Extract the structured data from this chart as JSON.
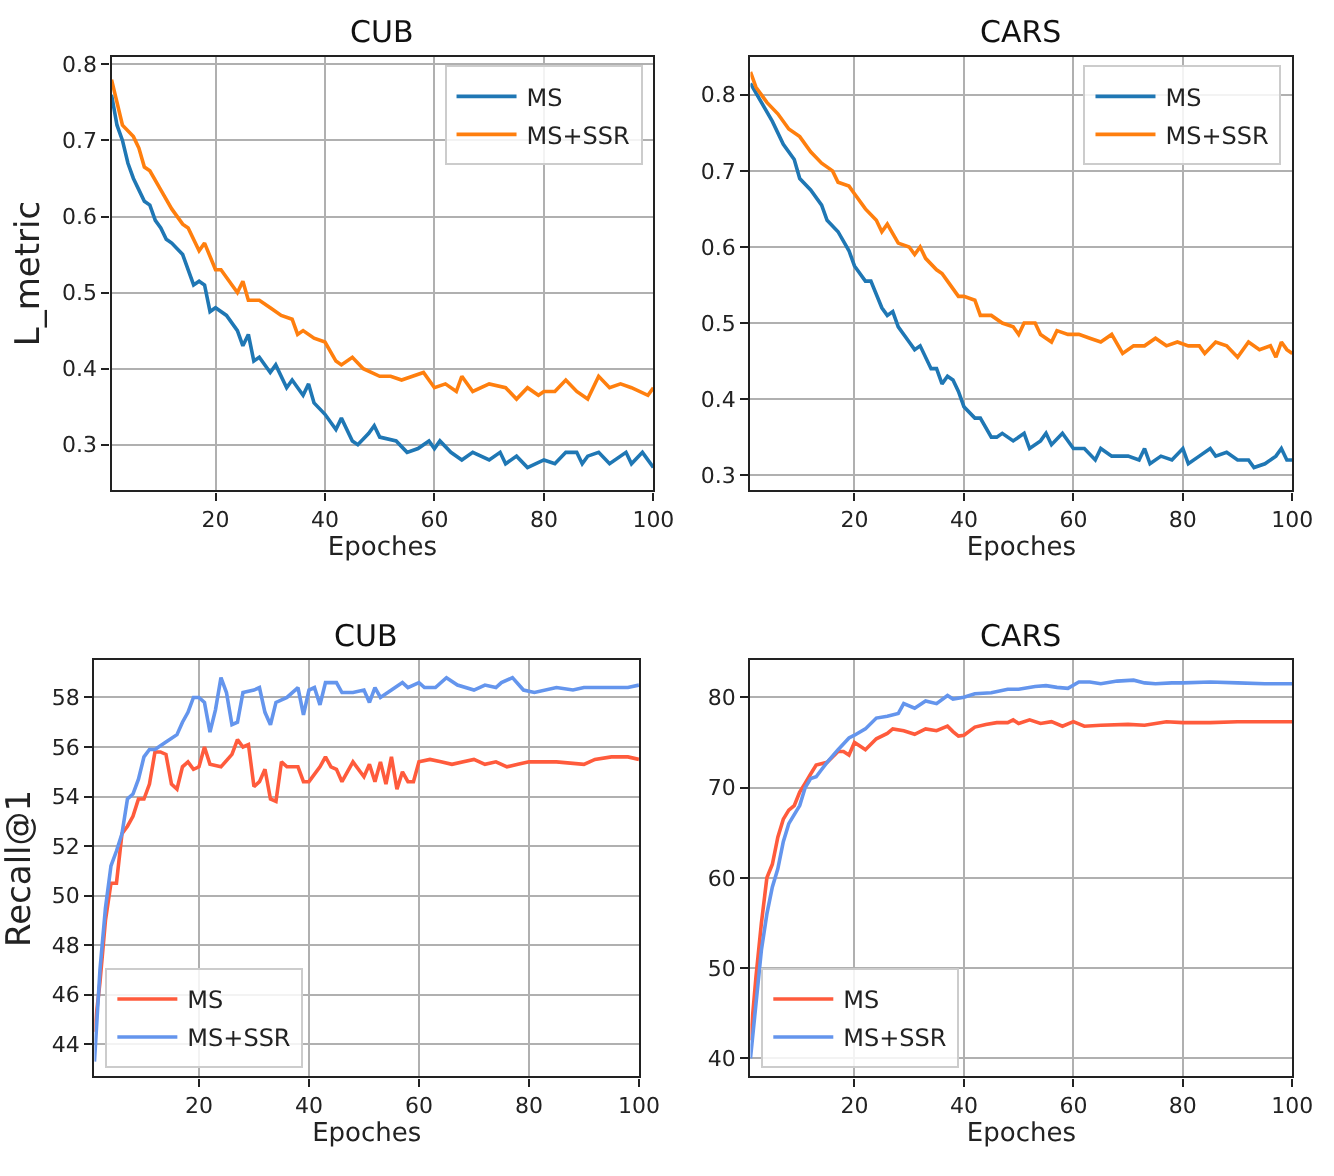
{
  "chart_data": [
    {
      "type": "line",
      "title": "CUB",
      "xlabel": "Epoches",
      "ylabel": "L_metric",
      "xlim": [
        1,
        100
      ],
      "xticks": [
        20,
        40,
        60,
        80,
        100
      ],
      "ylim": [
        0.24,
        0.81
      ],
      "yticks": [
        0.3,
        0.4,
        0.5,
        0.6,
        0.7,
        0.8
      ],
      "grid": true,
      "legend": "top right",
      "series": [
        {
          "name": "MS",
          "color": "#1f77b4",
          "x": [
            1,
            2,
            3,
            4,
            5,
            6,
            7,
            8,
            9,
            10,
            11,
            12,
            14,
            16,
            17,
            18,
            19,
            20,
            22,
            24,
            25,
            26,
            27,
            28,
            30,
            31,
            33,
            34,
            36,
            37,
            38,
            40,
            42,
            43,
            45,
            46,
            48,
            49,
            50,
            53,
            55,
            57,
            59,
            60,
            61,
            63,
            65,
            67,
            70,
            72,
            73,
            75,
            77,
            80,
            82,
            84,
            86,
            87,
            88,
            90,
            92,
            95,
            96,
            98,
            100
          ],
          "values": [
            0.76,
            0.72,
            0.7,
            0.67,
            0.65,
            0.635,
            0.62,
            0.615,
            0.595,
            0.585,
            0.57,
            0.565,
            0.55,
            0.51,
            0.515,
            0.51,
            0.475,
            0.48,
            0.47,
            0.45,
            0.43,
            0.445,
            0.41,
            0.415,
            0.395,
            0.405,
            0.375,
            0.385,
            0.365,
            0.38,
            0.355,
            0.34,
            0.32,
            0.335,
            0.305,
            0.3,
            0.315,
            0.325,
            0.31,
            0.305,
            0.29,
            0.295,
            0.305,
            0.295,
            0.305,
            0.29,
            0.28,
            0.29,
            0.28,
            0.29,
            0.275,
            0.285,
            0.27,
            0.28,
            0.275,
            0.29,
            0.29,
            0.275,
            0.285,
            0.29,
            0.275,
            0.29,
            0.275,
            0.29,
            0.27
          ]
        },
        {
          "name": "MS+SSR",
          "color": "#ff7f0e",
          "x": [
            1,
            2,
            3,
            5,
            6,
            7,
            8,
            10,
            12,
            14,
            15,
            17,
            18,
            20,
            21,
            23,
            24,
            25,
            26,
            28,
            30,
            32,
            34,
            35,
            36,
            38,
            40,
            42,
            43,
            45,
            47,
            50,
            52,
            54,
            56,
            58,
            60,
            62,
            64,
            65,
            67,
            70,
            73,
            75,
            77,
            79,
            80,
            82,
            84,
            86,
            88,
            90,
            92,
            94,
            96,
            99,
            100
          ],
          "values": [
            0.78,
            0.75,
            0.72,
            0.705,
            0.69,
            0.665,
            0.66,
            0.635,
            0.61,
            0.59,
            0.585,
            0.555,
            0.565,
            0.53,
            0.53,
            0.51,
            0.5,
            0.515,
            0.49,
            0.49,
            0.48,
            0.47,
            0.465,
            0.445,
            0.45,
            0.44,
            0.435,
            0.41,
            0.405,
            0.415,
            0.4,
            0.39,
            0.39,
            0.385,
            0.39,
            0.395,
            0.375,
            0.38,
            0.37,
            0.39,
            0.37,
            0.38,
            0.375,
            0.36,
            0.375,
            0.365,
            0.37,
            0.37,
            0.385,
            0.37,
            0.36,
            0.39,
            0.375,
            0.38,
            0.375,
            0.365,
            0.375
          ]
        }
      ]
    },
    {
      "type": "line",
      "title": "CARS",
      "xlabel": "Epoches",
      "xlim": [
        1,
        100
      ],
      "xticks": [
        20,
        40,
        60,
        80,
        100
      ],
      "ylim": [
        0.28,
        0.85
      ],
      "yticks": [
        0.3,
        0.4,
        0.5,
        0.6,
        0.7,
        0.8
      ],
      "grid": true,
      "legend": "top right",
      "series": [
        {
          "name": "MS",
          "color": "#1f77b4",
          "x": [
            1,
            3,
            5,
            7,
            9,
            10,
            12,
            14,
            15,
            17,
            19,
            20,
            22,
            23,
            25,
            26,
            27,
            28,
            30,
            31,
            32,
            34,
            35,
            36,
            37,
            38,
            39,
            40,
            42,
            43,
            45,
            46,
            47,
            49,
            51,
            52,
            54,
            55,
            56,
            58,
            60,
            62,
            64,
            65,
            67,
            70,
            72,
            73,
            74,
            76,
            78,
            80,
            81,
            83,
            85,
            86,
            88,
            90,
            92,
            93,
            95,
            97,
            98,
            99,
            100
          ],
          "values": [
            0.815,
            0.79,
            0.765,
            0.735,
            0.715,
            0.69,
            0.675,
            0.655,
            0.635,
            0.62,
            0.595,
            0.575,
            0.555,
            0.555,
            0.52,
            0.51,
            0.515,
            0.495,
            0.475,
            0.465,
            0.47,
            0.44,
            0.44,
            0.42,
            0.43,
            0.425,
            0.41,
            0.39,
            0.375,
            0.375,
            0.35,
            0.35,
            0.355,
            0.345,
            0.355,
            0.335,
            0.345,
            0.355,
            0.34,
            0.355,
            0.335,
            0.335,
            0.32,
            0.335,
            0.325,
            0.325,
            0.32,
            0.335,
            0.315,
            0.325,
            0.32,
            0.335,
            0.315,
            0.325,
            0.335,
            0.325,
            0.33,
            0.32,
            0.32,
            0.31,
            0.315,
            0.325,
            0.335,
            0.32,
            0.32
          ]
        },
        {
          "name": "MS+SSR",
          "color": "#ff7f0e",
          "x": [
            1,
            2,
            4,
            6,
            8,
            10,
            12,
            14,
            16,
            17,
            19,
            20,
            22,
            24,
            25,
            26,
            28,
            30,
            31,
            32,
            33,
            35,
            36,
            37,
            39,
            40,
            42,
            43,
            45,
            47,
            49,
            50,
            51,
            53,
            54,
            56,
            57,
            59,
            61,
            63,
            65,
            67,
            69,
            71,
            73,
            75,
            77,
            79,
            81,
            83,
            84,
            86,
            88,
            90,
            92,
            94,
            96,
            97,
            98,
            99,
            100
          ],
          "values": [
            0.83,
            0.81,
            0.79,
            0.775,
            0.755,
            0.745,
            0.725,
            0.71,
            0.7,
            0.685,
            0.68,
            0.67,
            0.65,
            0.635,
            0.62,
            0.63,
            0.605,
            0.6,
            0.59,
            0.6,
            0.585,
            0.57,
            0.565,
            0.555,
            0.535,
            0.535,
            0.53,
            0.51,
            0.51,
            0.5,
            0.495,
            0.485,
            0.5,
            0.5,
            0.485,
            0.475,
            0.49,
            0.485,
            0.485,
            0.48,
            0.475,
            0.485,
            0.46,
            0.47,
            0.47,
            0.48,
            0.47,
            0.475,
            0.47,
            0.47,
            0.46,
            0.475,
            0.47,
            0.455,
            0.475,
            0.465,
            0.47,
            0.455,
            0.475,
            0.465,
            0.46
          ]
        }
      ]
    },
    {
      "type": "line",
      "title": "CUB",
      "xlabel": "Epoches",
      "ylabel": "Recall@1",
      "xlim": [
        1,
        100
      ],
      "xticks": [
        20,
        40,
        60,
        80,
        100
      ],
      "ylim": [
        42.7,
        59.5
      ],
      "yticks": [
        44,
        46,
        48,
        50,
        52,
        54,
        56,
        58
      ],
      "grid": true,
      "legend": "bottom left",
      "series": [
        {
          "name": "MS",
          "color": "#ff5b3c",
          "x": [
            1,
            2,
            3,
            4,
            5,
            6,
            7,
            8,
            9,
            10,
            11,
            12,
            13,
            14,
            15,
            16,
            17,
            18,
            19,
            20,
            21,
            22,
            24,
            26,
            27,
            28,
            29,
            30,
            31,
            32,
            33,
            34,
            35,
            36,
            38,
            39,
            40,
            42,
            43,
            44,
            45,
            46,
            48,
            50,
            51,
            52,
            53,
            54,
            55,
            56,
            57,
            58,
            59,
            60,
            62,
            64,
            66,
            70,
            72,
            74,
            76,
            78,
            80,
            85,
            90,
            92,
            95,
            98,
            100
          ],
          "values": [
            44.5,
            46.5,
            49,
            50.5,
            50.5,
            52.5,
            52.8,
            53.2,
            53.9,
            53.9,
            54.5,
            55.8,
            55.8,
            55.7,
            54.5,
            54.3,
            55.2,
            55.4,
            55.1,
            55.2,
            56,
            55.3,
            55.2,
            55.7,
            56.3,
            56,
            56.1,
            54.4,
            54.6,
            55.1,
            53.9,
            53.8,
            55.4,
            55.2,
            55.2,
            54.6,
            54.6,
            55.2,
            55.6,
            55.2,
            55.1,
            54.6,
            55.4,
            54.8,
            55.3,
            54.6,
            55.4,
            54.5,
            55.6,
            54.3,
            55,
            54.6,
            54.6,
            55.4,
            55.5,
            55.4,
            55.3,
            55.5,
            55.3,
            55.4,
            55.2,
            55.3,
            55.4,
            55.4,
            55.3,
            55.5,
            55.6,
            55.6,
            55.5
          ]
        },
        {
          "name": "MS+SSR",
          "color": "#6495ed",
          "x": [
            1,
            2,
            3,
            4,
            5,
            6,
            7,
            8,
            9,
            10,
            11,
            12,
            14,
            16,
            17,
            18,
            19,
            20,
            21,
            22,
            23,
            24,
            25,
            26,
            27,
            28,
            30,
            31,
            32,
            33,
            34,
            36,
            38,
            39,
            40,
            41,
            42,
            43,
            45,
            46,
            48,
            50,
            51,
            52,
            53,
            55,
            57,
            58,
            60,
            61,
            63,
            65,
            67,
            70,
            72,
            74,
            75,
            77,
            79,
            81,
            85,
            88,
            90,
            95,
            98,
            100
          ],
          "values": [
            43.3,
            47,
            49.5,
            51.2,
            51.8,
            52.5,
            53.9,
            54.1,
            54.7,
            55.6,
            55.9,
            55.9,
            56.2,
            56.5,
            57,
            57.4,
            58,
            58,
            57.8,
            56.6,
            57.5,
            58.8,
            58.2,
            56.9,
            57,
            58.2,
            58.3,
            58.4,
            57.4,
            56.9,
            57.8,
            58,
            58.4,
            57.3,
            58.3,
            58.4,
            57.7,
            58.6,
            58.6,
            58.2,
            58.2,
            58.3,
            57.8,
            58.4,
            58,
            58.3,
            58.6,
            58.4,
            58.6,
            58.4,
            58.4,
            58.8,
            58.5,
            58.3,
            58.5,
            58.4,
            58.6,
            58.8,
            58.3,
            58.2,
            58.4,
            58.3,
            58.4,
            58.4,
            58.4,
            58.5
          ]
        }
      ]
    },
    {
      "type": "line",
      "title": "CARS",
      "xlabel": "Epoches",
      "xlim": [
        1,
        100
      ],
      "xticks": [
        20,
        40,
        60,
        80,
        100
      ],
      "ylim": [
        38,
        84.1
      ],
      "yticks": [
        40,
        50,
        60,
        70,
        80
      ],
      "grid": true,
      "legend": "bottom left",
      "series": [
        {
          "name": "MS",
          "color": "#ff5b3c",
          "x": [
            1,
            2,
            3,
            4,
            5,
            6,
            7,
            8,
            9,
            10,
            11,
            12,
            13,
            15,
            17,
            18,
            19,
            20,
            21,
            22,
            24,
            26,
            27,
            29,
            31,
            33,
            35,
            37,
            38,
            39,
            40,
            42,
            44,
            46,
            48,
            49,
            50,
            52,
            54,
            56,
            58,
            60,
            62,
            65,
            70,
            73,
            77,
            80,
            85,
            90,
            95,
            100
          ],
          "values": [
            42,
            49,
            55,
            60,
            61.5,
            64.5,
            66.5,
            67.5,
            68,
            69.5,
            70.5,
            71.5,
            72.5,
            72.8,
            74,
            74,
            73.6,
            75,
            74.6,
            74.2,
            75.4,
            76,
            76.5,
            76.3,
            75.9,
            76.5,
            76.3,
            76.8,
            76.2,
            75.7,
            75.8,
            76.7,
            77,
            77.2,
            77.2,
            77.5,
            77.1,
            77.5,
            77.1,
            77.3,
            76.8,
            77.3,
            76.8,
            76.9,
            77,
            76.9,
            77.3,
            77.2,
            77.2,
            77.3,
            77.3,
            77.3
          ]
        },
        {
          "name": "MS+SSR",
          "color": "#6495ed",
          "x": [
            1,
            2,
            3,
            4,
            5,
            6,
            7,
            8,
            9,
            10,
            11,
            12,
            13,
            14,
            15,
            17,
            19,
            20,
            22,
            24,
            26,
            28,
            29,
            31,
            33,
            35,
            37,
            38,
            40,
            42,
            45,
            48,
            50,
            53,
            55,
            57,
            59,
            61,
            63,
            65,
            68,
            71,
            73,
            75,
            78,
            80,
            85,
            90,
            95,
            100
          ],
          "values": [
            40,
            46,
            52,
            56,
            59,
            61,
            64,
            66,
            67,
            68,
            70,
            71,
            71.2,
            72,
            72.8,
            74.2,
            75.5,
            75.8,
            76.5,
            77.7,
            77.9,
            78.2,
            79.3,
            78.8,
            79.6,
            79.3,
            80.2,
            79.8,
            80,
            80.4,
            80.5,
            80.9,
            80.9,
            81.2,
            81.3,
            81.1,
            81,
            81.7,
            81.7,
            81.5,
            81.8,
            81.9,
            81.6,
            81.5,
            81.6,
            81.6,
            81.7,
            81.6,
            81.5,
            81.5
          ]
        }
      ]
    }
  ]
}
